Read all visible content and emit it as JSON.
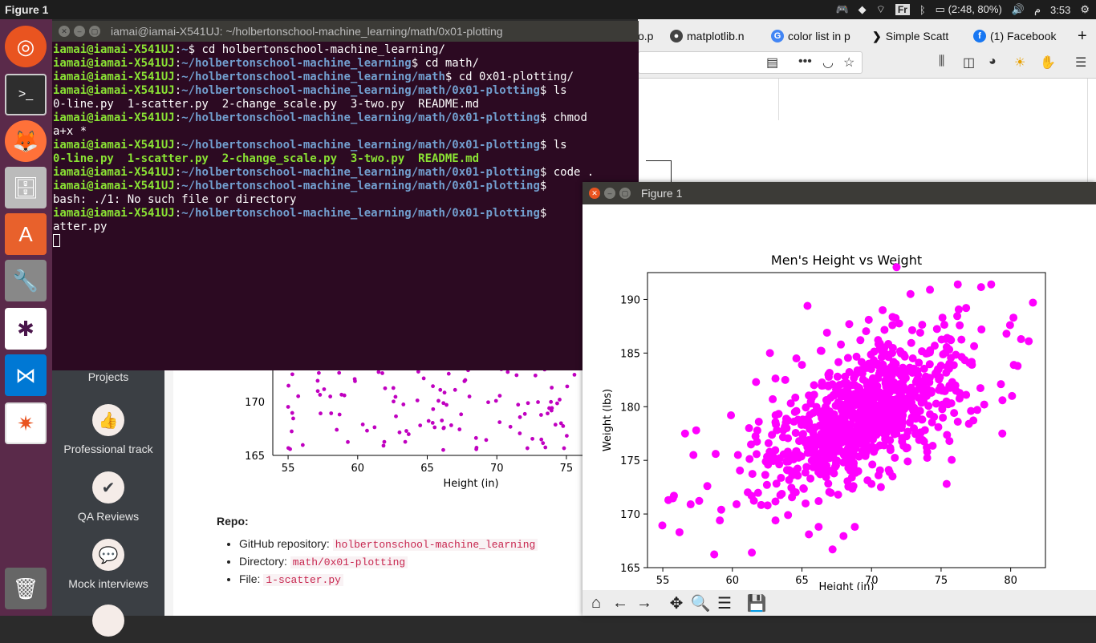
{
  "topbar": {
    "title": "Figure 1",
    "keyboard": "Fr",
    "battery": "(2:48, 80%)",
    "locale_glyph": "م",
    "clock": "3:53"
  },
  "browser": {
    "tabs": [
      {
        "label": "o.p"
      },
      {
        "label": "matplotlib.n"
      },
      {
        "label": "color list in p"
      },
      {
        "label": "Simple Scatt"
      },
      {
        "label": "(1) Facebook"
      }
    ]
  },
  "terminal": {
    "title": "iamai@iamai-X541UJ: ~/holbertonschool-machine_learning/math/0x01-plotting",
    "lines": [
      {
        "user": "iamai@iamai-X541UJ",
        "sep": ":",
        "path": "~",
        "cmd": "$ cd holbertonschool-machine_learning/"
      },
      {
        "user": "iamai@iamai-X541UJ",
        "sep": ":",
        "path": "~/holbertonschool-machine_learning",
        "cmd": "$ cd math/"
      },
      {
        "user": "iamai@iamai-X541UJ",
        "sep": ":",
        "path": "~/holbertonschool-machine_learning/math",
        "cmd": "$ cd 0x01-plotting/"
      },
      {
        "user": "iamai@iamai-X541UJ",
        "sep": ":",
        "path": "~/holbertonschool-machine_learning/math/0x01-plotting",
        "cmd": "$ ls"
      },
      {
        "out": "0-line.py  1-scatter.py  2-change_scale.py  3-two.py  README.md"
      },
      {
        "user": "iamai@iamai-X541UJ",
        "sep": ":",
        "path": "~/holbertonschool-machine_learning/math/0x01-plotting",
        "cmd": "$ chmod"
      },
      {
        "out": "a+x *"
      },
      {
        "user": "iamai@iamai-X541UJ",
        "sep": ":",
        "path": "~/holbertonschool-machine_learning/math/0x01-plotting",
        "cmd": "$ ls"
      },
      {
        "files": "0-line.py  1-scatter.py  2-change_scale.py  3-two.py  README.md"
      },
      {
        "user": "iamai@iamai-X541UJ",
        "sep": ":",
        "path": "~/holbertonschool-machine_learning/math/0x01-plotting",
        "cmd": "$ code ."
      },
      {
        "user": "iamai@iamai-X541UJ",
        "sep": ":",
        "path": "~/holbertonschool-machine_learning/math/0x01-plotting",
        "cmd": "$"
      },
      {
        "out": "bash: ./1: No such file or directory"
      },
      {
        "user": "iamai@iamai-X541UJ",
        "sep": ":",
        "path": "~/holbertonschool-machine_learning/math/0x01-plotting",
        "cmd": "$"
      },
      {
        "out": "atter.py"
      }
    ]
  },
  "sidebar": {
    "items": [
      {
        "label": "Projects"
      },
      {
        "label": "Professional track",
        "icon": "thumbs-up-icon"
      },
      {
        "label": "QA Reviews",
        "icon": "check-icon"
      },
      {
        "label": "Mock interviews",
        "icon": "chat-icon"
      }
    ]
  },
  "repo": {
    "heading": "Repo:",
    "items": [
      {
        "label": "GitHub repository: ",
        "value": "holbertonschool-machine_learning"
      },
      {
        "label": "Directory: ",
        "value": "math/0x01-plotting"
      },
      {
        "label": "File: ",
        "value": "1-scatter.py"
      }
    ]
  },
  "bg_chart": {
    "xlabel": "Height (in)",
    "xticks": [
      55,
      60,
      65,
      70,
      75
    ],
    "yticks": [
      165,
      170
    ]
  },
  "figure": {
    "window_title": "Figure 1"
  },
  "chart_data": {
    "type": "scatter",
    "title": "Men's Height vs Weight",
    "xlabel": "Height (in)",
    "ylabel": "Weight (lbs)",
    "xlim": [
      53.9,
      82.5
    ],
    "ylim": [
      165,
      192.5
    ],
    "xticks": [
      55,
      60,
      65,
      70,
      75,
      80
    ],
    "yticks": [
      165,
      170,
      175,
      180,
      185,
      190
    ],
    "color": "#ff00ff",
    "grid": false,
    "points": [
      [
        56.2,
        168.3
      ],
      [
        61.4,
        166.4
      ],
      [
        67.2,
        166.7
      ],
      [
        71.8,
        193.0
      ],
      [
        55.4,
        171.3
      ],
      [
        55.8,
        171.7
      ],
      [
        57.0,
        170.9
      ],
      [
        59.2,
        170.4
      ],
      [
        59.1,
        169.4
      ],
      [
        63.1,
        169.4
      ],
      [
        64.0,
        169.9
      ],
      [
        65.5,
        168.1
      ],
      [
        66.2,
        168.8
      ],
      [
        68.8,
        168.8
      ],
      [
        75.4,
        172.8
      ],
      [
        79.4,
        177.5
      ],
      [
        80.1,
        181.0
      ],
      [
        81.6,
        189.7
      ],
      [
        80.2,
        188.3
      ],
      [
        78.6,
        191.4
      ],
      [
        76.2,
        191.4
      ],
      [
        74.2,
        190.9
      ],
      [
        72.8,
        190.5
      ],
      [
        70.8,
        189.0
      ],
      [
        65.4,
        189.4
      ],
      [
        62.7,
        185.0
      ],
      [
        61.7,
        182.3
      ],
      [
        59.9,
        179.2
      ],
      [
        58.8,
        175.6
      ],
      [
        57.2,
        175.5
      ],
      [
        56.6,
        177.5
      ],
      [
        57.4,
        177.8
      ],
      [
        58.2,
        172.6
      ],
      [
        60.4,
        175.5
      ],
      [
        61.2,
        178.0
      ],
      [
        64.6,
        184.5
      ],
      [
        66.8,
        186.9
      ],
      [
        68.4,
        187.7
      ],
      [
        69.8,
        188.1
      ],
      [
        71.5,
        187.6
      ],
      [
        73.5,
        186.9
      ],
      [
        75.1,
        188.3
      ],
      [
        76.8,
        189.2
      ],
      [
        77.9,
        187.2
      ],
      [
        79.7,
        186.8
      ],
      [
        81.3,
        186.1
      ],
      [
        80.5,
        183.8
      ],
      [
        79.3,
        182.1
      ],
      [
        78.1,
        180.2
      ],
      [
        77.0,
        178.4
      ],
      [
        75.6,
        176.8
      ],
      [
        74.0,
        175.8
      ],
      [
        72.6,
        174.9
      ],
      [
        71.3,
        173.9
      ],
      [
        70.0,
        172.8
      ],
      [
        68.7,
        172.6
      ],
      [
        67.6,
        171.8
      ],
      [
        66.2,
        171.2
      ],
      [
        65.1,
        172.4
      ],
      [
        64.3,
        173.6
      ],
      [
        63.4,
        175.2
      ],
      [
        62.6,
        176.6
      ],
      [
        61.9,
        178.6
      ],
      [
        62.9,
        180.7
      ],
      [
        63.8,
        182.5
      ],
      [
        65.0,
        183.9
      ],
      [
        66.4,
        185.2
      ],
      [
        67.8,
        185.8
      ],
      [
        69.2,
        186.2
      ],
      [
        70.6,
        185.9
      ],
      [
        72.1,
        185.1
      ],
      [
        73.4,
        184.1
      ],
      [
        74.6,
        183.1
      ],
      [
        75.8,
        182.3
      ],
      [
        76.8,
        181.1
      ],
      [
        77.6,
        179.7
      ],
      [
        76.2,
        178.6
      ],
      [
        74.8,
        178.1
      ],
      [
        73.5,
        177.6
      ],
      [
        72.2,
        177.1
      ],
      [
        70.9,
        176.4
      ],
      [
        69.6,
        175.7
      ],
      [
        68.3,
        175.4
      ],
      [
        67.1,
        175.6
      ],
      [
        65.9,
        176.1
      ],
      [
        64.8,
        176.8
      ],
      [
        63.9,
        178.0
      ],
      [
        64.6,
        179.6
      ],
      [
        65.7,
        180.8
      ],
      [
        66.9,
        181.9
      ],
      [
        68.1,
        182.8
      ],
      [
        69.4,
        183.5
      ],
      [
        70.7,
        183.6
      ],
      [
        72.0,
        183.1
      ],
      [
        73.2,
        182.3
      ],
      [
        74.3,
        181.3
      ],
      [
        75.1,
        180.2
      ],
      [
        74.2,
        179.3
      ],
      [
        72.9,
        179.0
      ],
      [
        71.6,
        178.6
      ],
      [
        70.3,
        178.1
      ],
      [
        69.0,
        177.9
      ],
      [
        67.8,
        178.3
      ],
      [
        66.7,
        178.9
      ],
      [
        67.6,
        180.4
      ],
      [
        68.8,
        181.2
      ],
      [
        70.1,
        181.6
      ],
      [
        71.4,
        181.5
      ],
      [
        72.6,
        180.8
      ],
      [
        71.2,
        180.1
      ],
      [
        69.9,
        179.7
      ],
      [
        68.6,
        179.6
      ],
      [
        69.4,
        180.7
      ],
      [
        70.7,
        180.2
      ]
    ]
  }
}
